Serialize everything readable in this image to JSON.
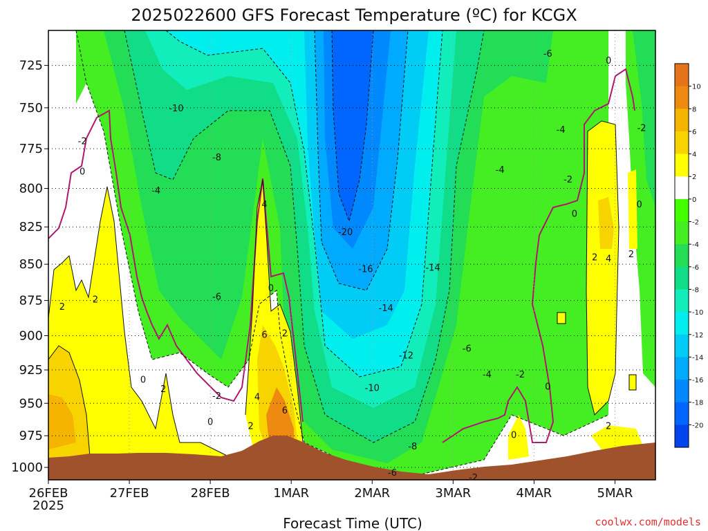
{
  "chart_data": {
    "type": "heatmap",
    "title": "2025022600 GFS Forecast Temperature (ºC) for KCGX",
    "xlabel": "Forecast Time (UTC)",
    "ylabel": "",
    "x_ticks": [
      "26FEB",
      "27FEB",
      "28FEB",
      "1MAR",
      "2MAR",
      "3MAR",
      "4MAR",
      "5MAR"
    ],
    "x_tick_sub": "2025",
    "x_range_days": [
      0,
      7.5
    ],
    "y_ticks": [
      725,
      750,
      775,
      800,
      825,
      850,
      875,
      900,
      925,
      950,
      975,
      1000
    ],
    "y_range_hpa": [
      705,
      1010
    ],
    "y_scale": "log-pressure (inverted)",
    "grid": true,
    "colorbar": {
      "labels": [
        "10",
        "8",
        "6",
        "4",
        "2",
        "0",
        "-2",
        "-4",
        "-6",
        "-8",
        "-10",
        "-12",
        "-14",
        "-16",
        "-18",
        "-20"
      ],
      "colors": [
        "#e5731a",
        "#ef8a10",
        "#f5b400",
        "#f7d400",
        "#ffff00",
        "#ffffff",
        "#44ff00",
        "#44ee22",
        "#22dd55",
        "#11dd88",
        "#11eebb",
        "#00eeee",
        "#00ccf5",
        "#00aaff",
        "#0088ff",
        "#0066ff",
        "#0044ee"
      ]
    },
    "contour_labels": [
      {
        "text": "-6",
        "day": 6.17,
        "p": 718
      },
      {
        "text": "0",
        "day": 6.92,
        "p": 722
      },
      {
        "text": "-10",
        "day": 1.58,
        "p": 750
      },
      {
        "text": "-2",
        "day": 7.33,
        "p": 762
      },
      {
        "text": "-4",
        "day": 6.33,
        "p": 763
      },
      {
        "text": "-2",
        "day": 0.42,
        "p": 770
      },
      {
        "text": "-8",
        "day": 2.08,
        "p": 780
      },
      {
        "text": "-4",
        "day": 5.58,
        "p": 788
      },
      {
        "text": "0",
        "day": 0.42,
        "p": 789
      },
      {
        "text": "-2",
        "day": 6.42,
        "p": 794
      },
      {
        "text": "-4",
        "day": 1.33,
        "p": 801
      },
      {
        "text": "4",
        "day": 2.67,
        "p": 810
      },
      {
        "text": "0",
        "day": 7.3,
        "p": 810
      },
      {
        "text": "0",
        "day": 6.5,
        "p": 816
      },
      {
        "text": "-20",
        "day": 3.67,
        "p": 828
      },
      {
        "text": "2",
        "day": 6.75,
        "p": 845
      },
      {
        "text": "4",
        "day": 6.92,
        "p": 846
      },
      {
        "text": "2",
        "day": 7.2,
        "p": 843
      },
      {
        "text": "-16",
        "day": 3.92,
        "p": 853
      },
      {
        "text": "-14",
        "day": 4.75,
        "p": 852
      },
      {
        "text": "0",
        "day": 2.75,
        "p": 866
      },
      {
        "text": "-6",
        "day": 2.08,
        "p": 872
      },
      {
        "text": "2",
        "day": 0.17,
        "p": 879
      },
      {
        "text": "2",
        "day": 0.58,
        "p": 874
      },
      {
        "text": "-14",
        "day": 4.17,
        "p": 880
      },
      {
        "text": "6",
        "day": 2.67,
        "p": 899
      },
      {
        "text": "2",
        "day": 2.92,
        "p": 898
      },
      {
        "text": "-6",
        "day": 5.17,
        "p": 909
      },
      {
        "text": "-12",
        "day": 4.42,
        "p": 914
      },
      {
        "text": "-4",
        "day": 5.42,
        "p": 928
      },
      {
        "text": "-2",
        "day": 5.83,
        "p": 928
      },
      {
        "text": "0",
        "day": 1.17,
        "p": 932
      },
      {
        "text": "2",
        "day": 1.42,
        "p": 939
      },
      {
        "text": "-10",
        "day": 4.0,
        "p": 938
      },
      {
        "text": "0",
        "day": 6.17,
        "p": 937
      },
      {
        "text": "-2",
        "day": 2.08,
        "p": 944
      },
      {
        "text": "4",
        "day": 2.58,
        "p": 945
      },
      {
        "text": "6",
        "day": 2.92,
        "p": 955
      },
      {
        "text": "0",
        "day": 2.0,
        "p": 964
      },
      {
        "text": "2",
        "day": 2.5,
        "p": 967
      },
      {
        "text": "2",
        "day": 6.92,
        "p": 967
      },
      {
        "text": "0",
        "day": 5.75,
        "p": 974
      },
      {
        "text": "-8",
        "day": 4.5,
        "p": 983
      },
      {
        "text": "-6",
        "day": 4.25,
        "p": 1004
      },
      {
        "text": "-2",
        "day": 5.25,
        "p": 1011
      }
    ]
  },
  "credit": "coolwx.com/models"
}
